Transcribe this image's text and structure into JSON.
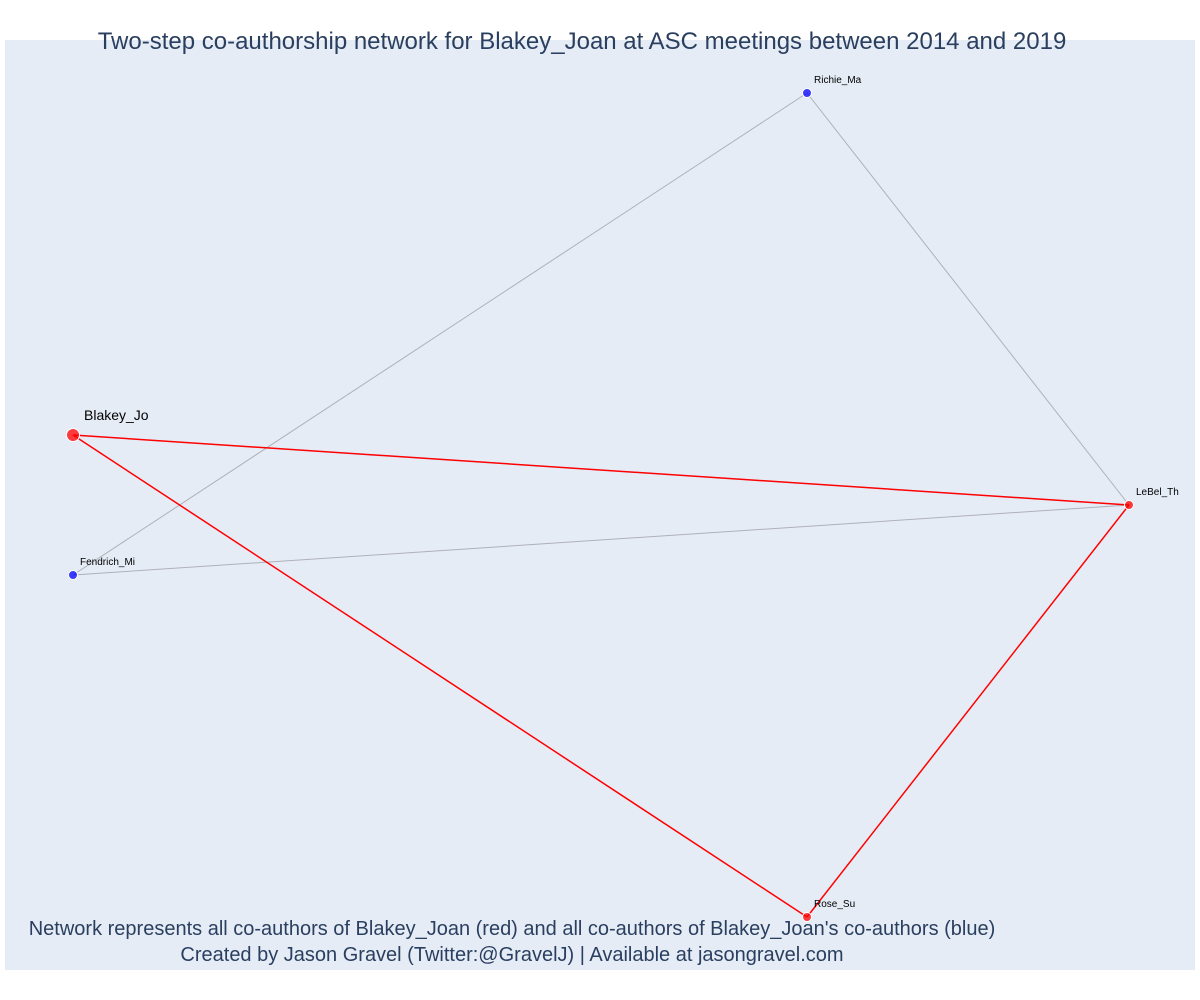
{
  "title": "Two-step co-authorship network for Blakey_Joan at ASC meetings between 2014 and 2019",
  "caption": {
    "line1": "Network represents all co-authors of Blakey_Joan (red) and all co-authors of Blakey_Joan's co-authors (blue)",
    "line2": "Created by Jason Gravel (Twitter:@GravelJ) | Available at jasongravel.com"
  },
  "colors": {
    "background": "#e5ecf6",
    "primary": "#ff0000",
    "secondary": "#0000ff",
    "edge_primary": "#ff0000",
    "edge_secondary": "#b0b0b8",
    "text": "#2a3f5f"
  },
  "nodes": [
    {
      "id": "Blakey_Jo",
      "label": "Blakey_Jo",
      "role": "focal"
    },
    {
      "id": "LeBel_Th",
      "label": "LeBel_Th",
      "role": "co-author"
    },
    {
      "id": "Rose_Su",
      "label": "Rose_Su",
      "role": "co-author"
    },
    {
      "id": "Richie_Ma",
      "label": "Richie_Ma",
      "role": "second-step"
    },
    {
      "id": "Fendrich_Mi",
      "label": "Fendrich_Mi",
      "role": "second-step"
    }
  ],
  "edges": [
    {
      "source": "Blakey_Jo",
      "target": "LeBel_Th",
      "type": "primary"
    },
    {
      "source": "Blakey_Jo",
      "target": "Rose_Su",
      "type": "primary"
    },
    {
      "source": "LeBel_Th",
      "target": "Rose_Su",
      "type": "primary"
    },
    {
      "source": "Richie_Ma",
      "target": "LeBel_Th",
      "type": "secondary"
    },
    {
      "source": "Richie_Ma",
      "target": "Fendrich_Mi",
      "type": "secondary"
    },
    {
      "source": "Fendrich_Mi",
      "target": "LeBel_Th",
      "type": "secondary"
    }
  ]
}
